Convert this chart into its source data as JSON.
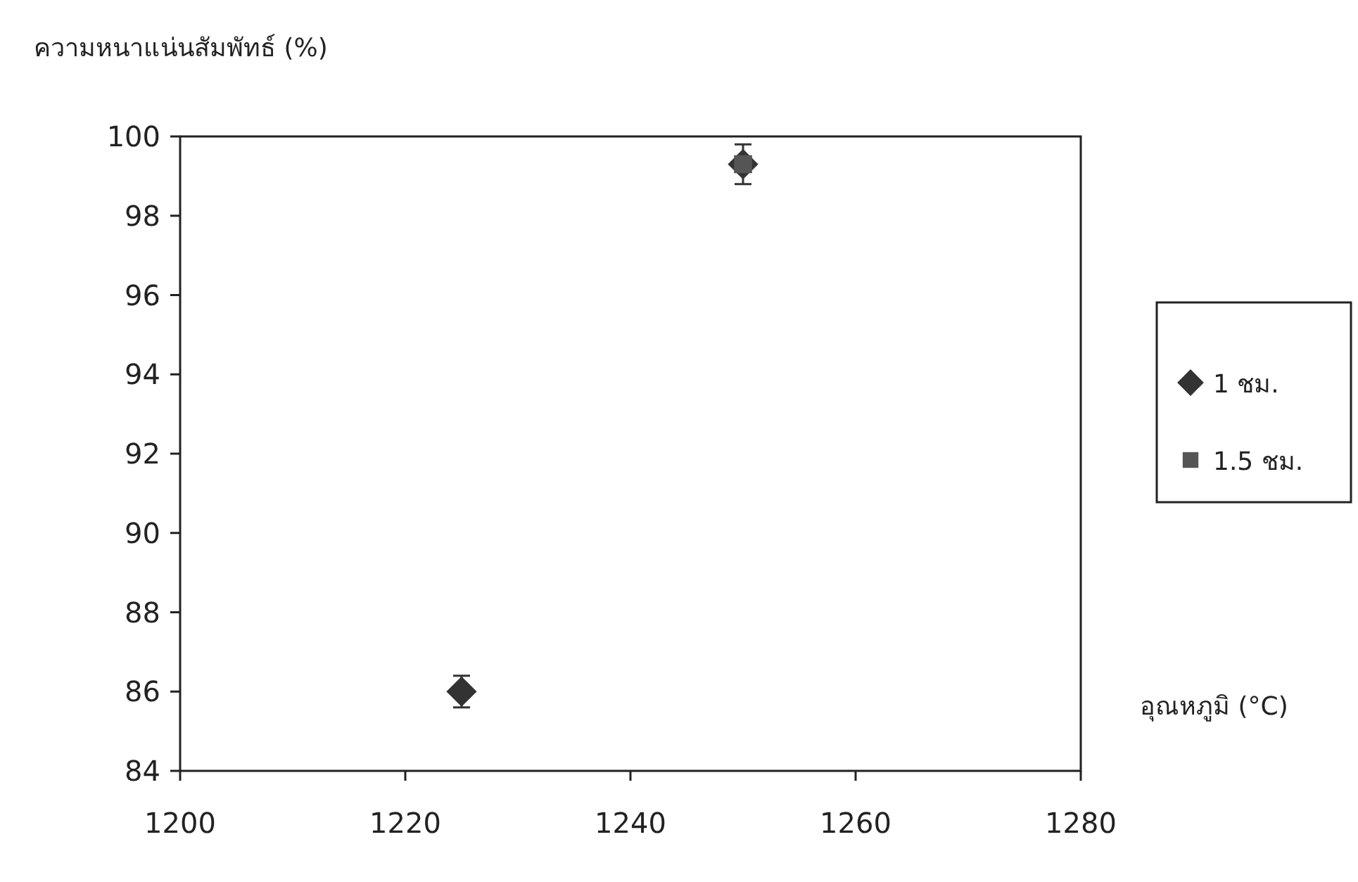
{
  "chart_data": {
    "type": "scatter",
    "ylabel": "ความหนาแน่นสัมพัทธ์ (%)",
    "xlabel": "อุณหภูมิ (°C)",
    "xlim": [
      1200,
      1280
    ],
    "xticks": [
      1200,
      1220,
      1240,
      1260,
      1280
    ],
    "ylim": [
      84,
      100
    ],
    "yticks": [
      84,
      86,
      88,
      90,
      92,
      94,
      96,
      98,
      100
    ],
    "grid": false,
    "legend": "right",
    "x": [
      1225,
      1250
    ],
    "series": [
      {
        "name": "1 ชม.",
        "color": "#333333",
        "marker": "diamond",
        "values": [
          86.0,
          99.3
        ],
        "errors": [
          0.4,
          0.5
        ]
      },
      {
        "name": "1.5 ชม.",
        "color": "#555555",
        "marker": "square",
        "values": [
          null,
          99.3
        ]
      }
    ]
  }
}
